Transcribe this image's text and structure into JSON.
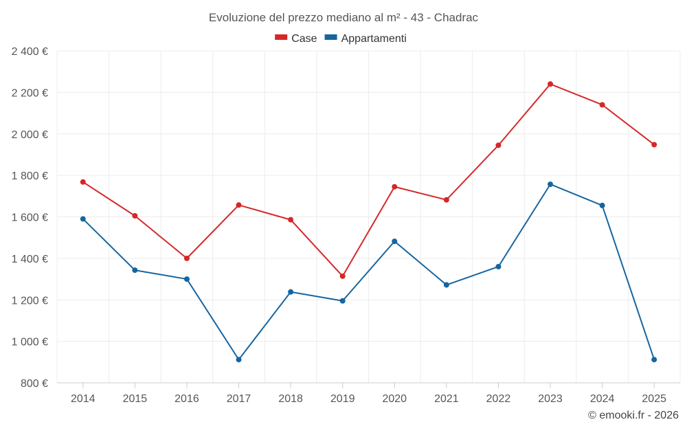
{
  "chart_data": {
    "type": "line",
    "title": "Evoluzione del prezzo mediano al m² - 43 - Chadrac",
    "categories": [
      "2014",
      "2015",
      "2016",
      "2017",
      "2018",
      "2019",
      "2020",
      "2021",
      "2022",
      "2023",
      "2024",
      "2025"
    ],
    "series": [
      {
        "name": "Case",
        "color": "#d62728",
        "values": [
          1768,
          1605,
          1400,
          1657,
          1586,
          1314,
          1745,
          1682,
          1945,
          2240,
          2140,
          1948
        ]
      },
      {
        "name": "Appartamenti",
        "color": "#1565a0",
        "values": [
          1590,
          1343,
          1300,
          912,
          1238,
          1195,
          1482,
          1272,
          1360,
          1757,
          1655,
          912
        ]
      }
    ],
    "ylim": [
      800,
      2400
    ],
    "yticks": [
      800,
      1000,
      1200,
      1400,
      1600,
      1800,
      2000,
      2200,
      2400
    ],
    "ytick_labels": [
      "800 €",
      "1 000 €",
      "1 200 €",
      "1 400 €",
      "1 600 €",
      "1 800 €",
      "2 000 €",
      "2 200 €",
      "2 400 €"
    ],
    "xlabel": "",
    "ylabel": "",
    "grid": true,
    "legend_position": "top-center"
  },
  "footer": {
    "credit": "© emooki.fr - 2026"
  },
  "colors": {
    "grid": "#ececec",
    "axis": "#cccccc",
    "text": "#555555"
  }
}
